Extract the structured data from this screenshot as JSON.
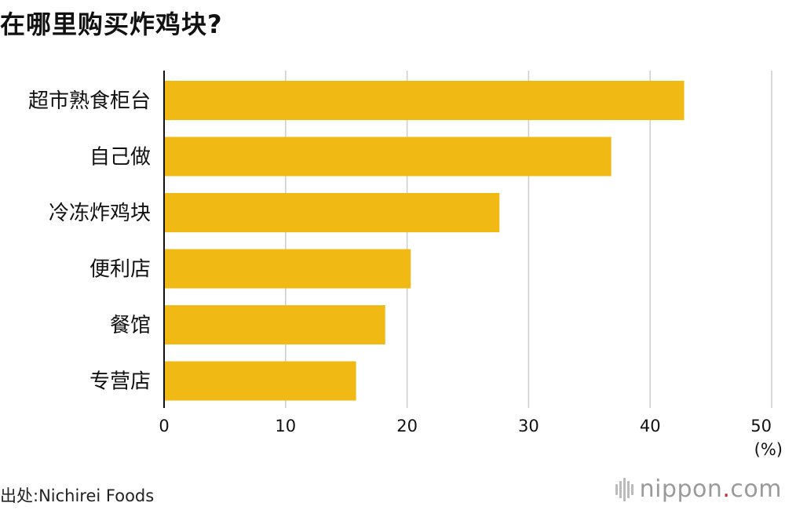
{
  "title": "在哪里购买炸鸡块?",
  "source": "出处:Nichirei Foods",
  "brand": {
    "name": "nippon",
    "dot": ".",
    "tld": "com",
    "dot_color": "#cc2b2b"
  },
  "colors": {
    "bar": "#f0b913",
    "grid": "#cccccc",
    "axis": "#111111"
  },
  "chart_data": {
    "type": "bar",
    "orientation": "horizontal",
    "categories": [
      "超市熟食柜台",
      "自己做",
      "冷冻炸鸡块",
      "便利店",
      "餐馆",
      "专营店"
    ],
    "values": [
      42.8,
      36.8,
      27.6,
      20.3,
      18.2,
      15.8
    ],
    "xlim": [
      0,
      50
    ],
    "xticks": [
      0,
      10,
      20,
      30,
      40,
      50
    ],
    "xunit": "(%)",
    "grid": true
  }
}
